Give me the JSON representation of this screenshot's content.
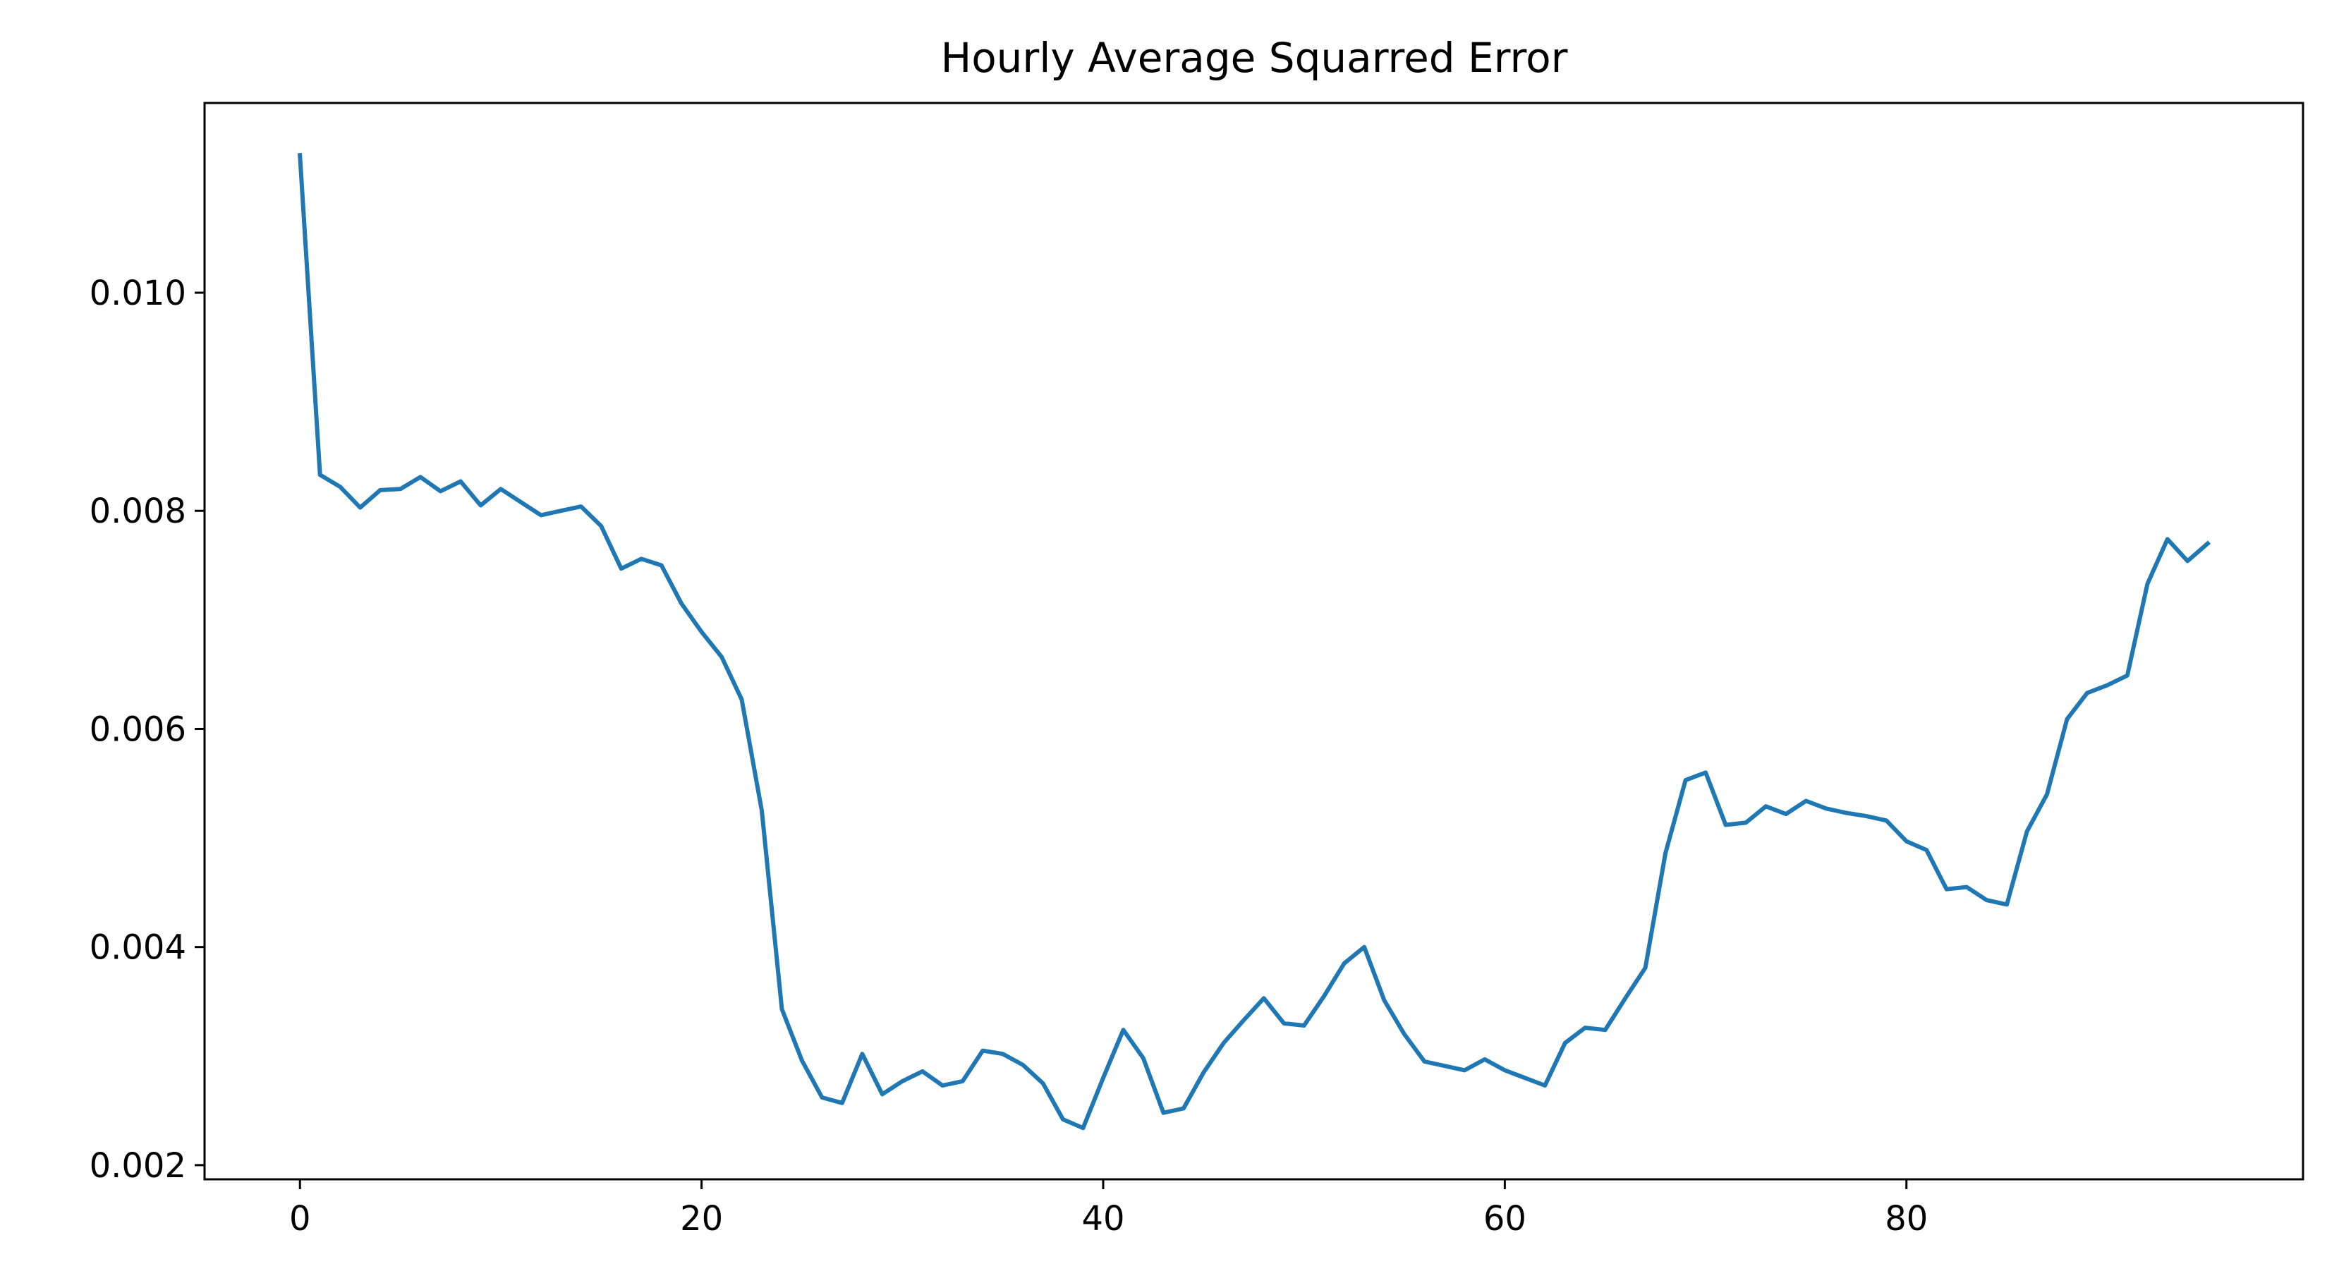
{
  "chart_data": {
    "type": "line",
    "title": "Hourly Average Squarred Error",
    "xlabel": "",
    "ylabel": "",
    "xlim": [
      -4.75,
      99.75
    ],
    "ylim": [
      0.00187,
      0.01174
    ],
    "grid": false,
    "x_ticks": [
      {
        "value": 0,
        "label": "0"
      },
      {
        "value": 20,
        "label": "20"
      },
      {
        "value": 40,
        "label": "40"
      },
      {
        "value": 60,
        "label": "60"
      },
      {
        "value": 80,
        "label": "80"
      }
    ],
    "y_ticks": [
      {
        "value": 0.002,
        "label": "0.002"
      },
      {
        "value": 0.004,
        "label": "0.004"
      },
      {
        "value": 0.006,
        "label": "0.006"
      },
      {
        "value": 0.008,
        "label": "0.008"
      },
      {
        "value": 0.01,
        "label": "0.010"
      }
    ],
    "series": [
      {
        "color": "#1f77b4",
        "x": [
          0,
          1,
          2,
          3,
          4,
          5,
          6,
          7,
          8,
          9,
          10,
          11,
          12,
          13,
          14,
          15,
          16,
          17,
          18,
          19,
          20,
          21,
          22,
          23,
          24,
          25,
          26,
          27,
          28,
          29,
          30,
          31,
          32,
          33,
          34,
          35,
          36,
          37,
          38,
          39,
          40,
          41,
          42,
          43,
          44,
          45,
          46,
          47,
          48,
          49,
          50,
          51,
          52,
          53,
          54,
          55,
          56,
          57,
          58,
          59,
          60,
          61,
          62,
          63,
          64,
          65,
          66,
          67,
          68,
          69,
          70,
          71,
          72,
          73,
          74,
          75,
          76,
          77,
          78,
          79,
          80,
          81,
          82,
          83,
          84,
          85,
          86,
          87,
          88,
          89,
          90,
          91,
          92,
          93,
          94,
          95
        ],
        "values": [
          0.01126,
          0.00833,
          0.00822,
          0.00803,
          0.00819,
          0.0082,
          0.00831,
          0.00818,
          0.00827,
          0.00805,
          0.0082,
          0.00808,
          0.00796,
          0.008,
          0.00804,
          0.00786,
          0.00747,
          0.00756,
          0.0075,
          0.00715,
          0.00689,
          0.00666,
          0.00627,
          0.00525,
          0.00343,
          0.00296,
          0.00262,
          0.00257,
          0.00302,
          0.00265,
          0.00277,
          0.00286,
          0.00273,
          0.00277,
          0.00305,
          0.00302,
          0.00292,
          0.00275,
          0.00242,
          0.00234,
          0.0028,
          0.00324,
          0.00298,
          0.00248,
          0.00252,
          0.00285,
          0.00312,
          0.00333,
          0.00353,
          0.0033,
          0.00328,
          0.00355,
          0.00385,
          0.004,
          0.00351,
          0.0032,
          0.00295,
          0.00291,
          0.00287,
          0.00297,
          0.00287,
          0.0028,
          0.00273,
          0.00312,
          0.00326,
          0.00324,
          0.00353,
          0.00381,
          0.00486,
          0.00553,
          0.0056,
          0.00512,
          0.00514,
          0.00529,
          0.00522,
          0.00534,
          0.00527,
          0.00523,
          0.0052,
          0.00516,
          0.00497,
          0.00489,
          0.00453,
          0.00455,
          0.00443,
          0.00439,
          0.00506,
          0.0054,
          0.00609,
          0.00633,
          0.0064,
          0.00649,
          0.00733,
          0.00774,
          0.00754,
          0.0077
        ]
      }
    ]
  }
}
